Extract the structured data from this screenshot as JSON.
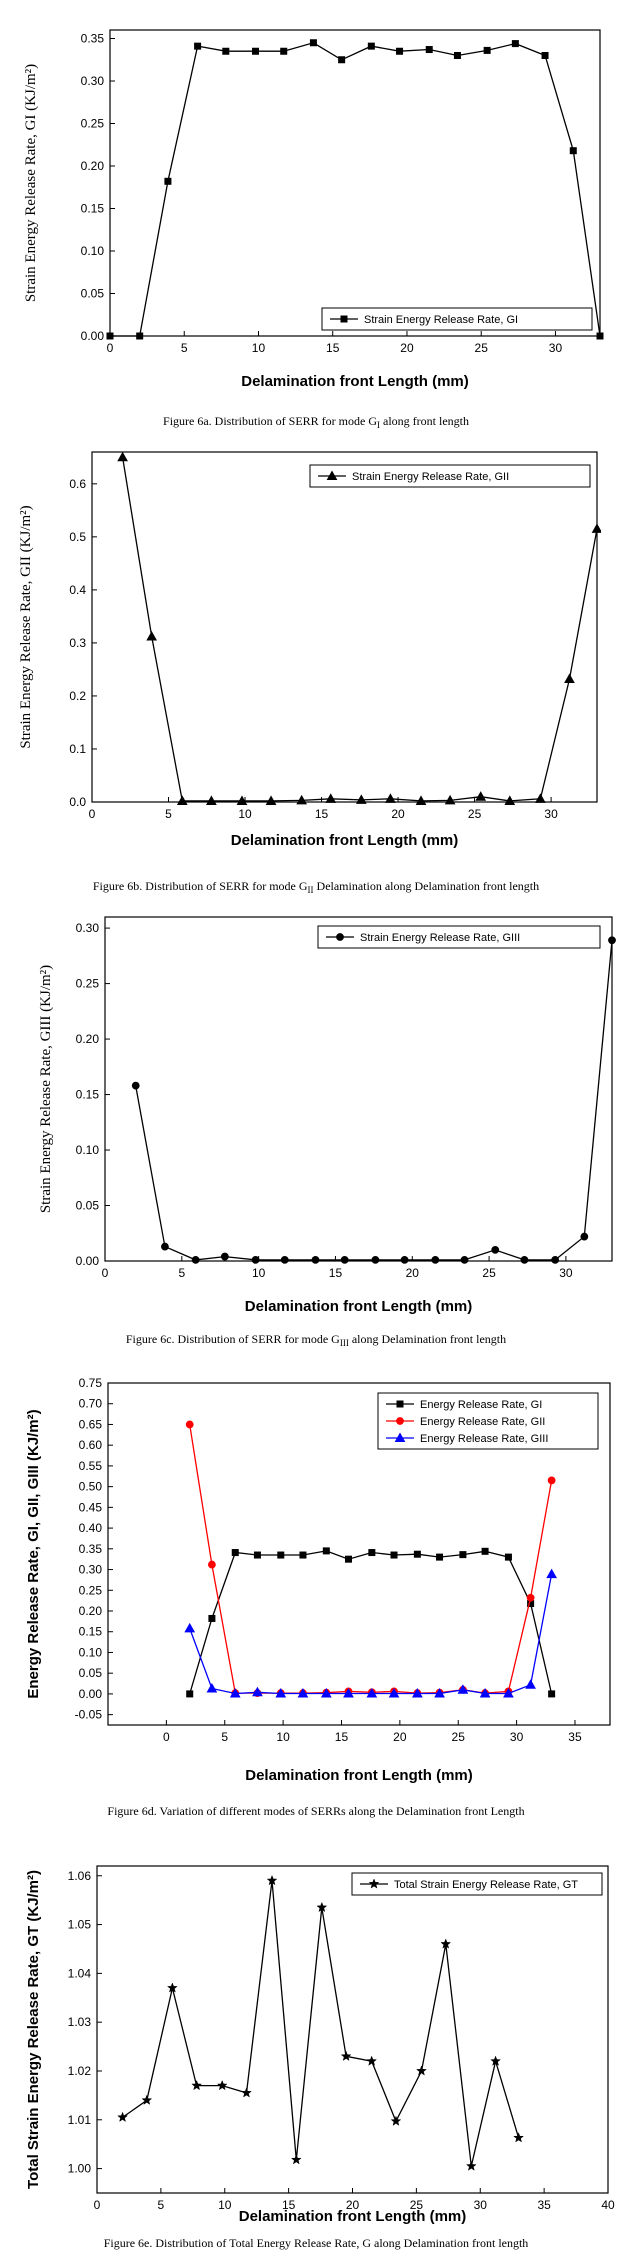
{
  "chart_data": [
    {
      "id": "fig6a",
      "type": "line",
      "caption": "Figure 6a.   Distribution of SERR for mode G",
      "caption_sub": "I",
      "caption_tail": " along front length",
      "xlabel": "Delamination front Length (mm)",
      "ylabel": "Strain Energy Release Rate, GI (KJ/m²)",
      "xlim": [
        0,
        33
      ],
      "ylim": [
        0,
        0.36
      ],
      "xticks": [
        0,
        5,
        10,
        15,
        20,
        25,
        30
      ],
      "yticks": [
        0,
        0.05,
        0.1,
        0.15,
        0.2,
        0.25,
        0.3,
        0.35
      ],
      "ytick_labels": [
        "0.00",
        "0.05",
        "0.10",
        "0.15",
        "0.20",
        "0.25",
        "0.30",
        "0.35"
      ],
      "legend_position": "bottom-right",
      "series": [
        {
          "name": "Strain Energy Release Rate, GI",
          "marker": "square",
          "color": "#000000",
          "x": [
            0,
            2,
            3.9,
            5.9,
            7.8,
            9.8,
            11.7,
            13.7,
            15.6,
            17.6,
            19.5,
            21.5,
            23.4,
            25.4,
            27.3,
            29.3,
            31.2,
            33
          ],
          "y": [
            0,
            0,
            0.182,
            0.341,
            0.335,
            0.335,
            0.335,
            0.345,
            0.325,
            0.341,
            0.335,
            0.337,
            0.33,
            0.336,
            0.344,
            0.33,
            0.218,
            0
          ]
        }
      ]
    },
    {
      "id": "fig6b",
      "type": "line",
      "caption": "Figure 6b.   Distribution of SERR for mode G",
      "caption_sub": "II",
      "caption_tail": " Delamination along Delamination front length",
      "xlabel": "Delamination front Length (mm)",
      "ylabel": "Strain Energy Release Rate, GII (KJ/m²)",
      "xlim": [
        0,
        33
      ],
      "ylim": [
        0,
        0.66
      ],
      "xticks": [
        0,
        5,
        10,
        15,
        20,
        25,
        30
      ],
      "yticks": [
        0,
        0.1,
        0.2,
        0.3,
        0.4,
        0.5,
        0.6
      ],
      "ytick_labels": [
        "0.0",
        "0.1",
        "0.2",
        "0.3",
        "0.4",
        "0.5",
        "0.6"
      ],
      "legend_position": "top-right",
      "series": [
        {
          "name": "Strain Energy Release Rate, GII",
          "marker": "triangle",
          "color": "#000000",
          "x": [
            2,
            3.9,
            5.9,
            7.8,
            9.8,
            11.7,
            13.7,
            15.6,
            17.6,
            19.5,
            21.5,
            23.4,
            25.4,
            27.3,
            29.3,
            31.2,
            33
          ],
          "y": [
            0.65,
            0.312,
            0.002,
            0.002,
            0.002,
            0.002,
            0.003,
            0.006,
            0.004,
            0.006,
            0.002,
            0.003,
            0.01,
            0.002,
            0.006,
            0.232,
            0.515
          ]
        }
      ]
    },
    {
      "id": "fig6c",
      "type": "line",
      "caption": "Figure 6c.   Distribution of SERR for mode G",
      "caption_sub": "III",
      "caption_tail": " along Delamination front length",
      "xlabel": "Delamination front Length (mm)",
      "ylabel": "Strain Energy Release Rate, GIII (KJ/m²)",
      "xlim": [
        0,
        33
      ],
      "ylim": [
        0,
        0.31
      ],
      "xticks": [
        0,
        5,
        10,
        15,
        20,
        25,
        30
      ],
      "yticks": [
        0,
        0.05,
        0.1,
        0.15,
        0.2,
        0.25,
        0.3
      ],
      "ytick_labels": [
        "0.00",
        "0.05",
        "0.10",
        "0.15",
        "0.20",
        "0.25",
        "0.30"
      ],
      "legend_position": "top-right",
      "series": [
        {
          "name": "Strain Energy Release Rate, GIII",
          "marker": "circle",
          "color": "#000000",
          "x": [
            2,
            3.9,
            5.9,
            7.8,
            9.8,
            11.7,
            13.7,
            15.6,
            17.6,
            19.5,
            21.5,
            23.4,
            25.4,
            27.3,
            29.3,
            31.2,
            33
          ],
          "y": [
            0.158,
            0.013,
            0.001,
            0.004,
            0.001,
            0.001,
            0.001,
            0.001,
            0.001,
            0.001,
            0.001,
            0.001,
            0.01,
            0.001,
            0.001,
            0.022,
            0.289
          ]
        }
      ]
    },
    {
      "id": "fig6d",
      "type": "line",
      "caption": "Figure 6d.   Variation of different modes of SERRs along the Delamination front Length",
      "caption_sub": "",
      "caption_tail": "",
      "xlabel": "Delamination front Length (mm)",
      "ylabel": "Energy Release Rate, GI, GII, GIII (KJ/m²)",
      "xlim": [
        -5,
        38
      ],
      "ylim": [
        -0.075,
        0.75
      ],
      "xticks": [
        0,
        5,
        10,
        15,
        20,
        25,
        30,
        35
      ],
      "yticks": [
        -0.05,
        0,
        0.05,
        0.1,
        0.15,
        0.2,
        0.25,
        0.3,
        0.35,
        0.4,
        0.45,
        0.5,
        0.55,
        0.6,
        0.65,
        0.7,
        0.75
      ],
      "ytick_labels": [
        "-0.05",
        "0.00",
        "0.05",
        "0.10",
        "0.15",
        "0.20",
        "0.25",
        "0.30",
        "0.35",
        "0.40",
        "0.45",
        "0.50",
        "0.55",
        "0.60",
        "0.65",
        "0.70",
        "0.75"
      ],
      "legend_position": "top-right",
      "series": [
        {
          "name": "Energy Release Rate, GI",
          "marker": "square",
          "color": "#000000",
          "x": [
            2,
            3.9,
            5.9,
            7.8,
            9.8,
            11.7,
            13.7,
            15.6,
            17.6,
            19.5,
            21.5,
            23.4,
            25.4,
            27.3,
            29.3,
            31.2,
            33
          ],
          "y": [
            0,
            0.182,
            0.341,
            0.335,
            0.335,
            0.335,
            0.345,
            0.325,
            0.341,
            0.335,
            0.337,
            0.33,
            0.336,
            0.344,
            0.33,
            0.218,
            0
          ]
        },
        {
          "name": "Energy Release Rate, GII",
          "marker": "circle",
          "color": "#ff0000",
          "x": [
            2,
            3.9,
            5.9,
            7.8,
            9.8,
            11.7,
            13.7,
            15.6,
            17.6,
            19.5,
            21.5,
            23.4,
            25.4,
            27.3,
            29.3,
            31.2,
            33
          ],
          "y": [
            0.65,
            0.312,
            0.002,
            0.002,
            0.002,
            0.002,
            0.003,
            0.006,
            0.004,
            0.006,
            0.002,
            0.003,
            0.01,
            0.002,
            0.006,
            0.232,
            0.515
          ]
        },
        {
          "name": "Energy Release Rate, GIII",
          "marker": "triangle",
          "color": "#0000ff",
          "x": [
            2,
            3.9,
            5.9,
            7.8,
            9.8,
            11.7,
            13.7,
            15.6,
            17.6,
            19.5,
            21.5,
            23.4,
            25.4,
            27.3,
            29.3,
            31.2,
            33
          ],
          "y": [
            0.158,
            0.013,
            0.001,
            0.004,
            0.001,
            0.001,
            0.001,
            0.001,
            0.001,
            0.001,
            0.001,
            0.001,
            0.01,
            0.001,
            0.001,
            0.022,
            0.289
          ]
        }
      ]
    },
    {
      "id": "fig6e",
      "type": "line",
      "caption": "Figure 6e.   Distribution of Total Energy Release Rate, G along Delamination front length",
      "caption_sub": "",
      "caption_tail": "",
      "xlabel": "Delamination front Length (mm)",
      "ylabel": "Total Strain Energy Release Rate, GT (KJ/m²)",
      "xlim": [
        0,
        40
      ],
      "ylim": [
        0.995,
        1.062
      ],
      "xticks": [
        0,
        5,
        10,
        15,
        20,
        25,
        30,
        35,
        40
      ],
      "yticks": [
        1.0,
        1.01,
        1.02,
        1.03,
        1.04,
        1.05,
        1.06
      ],
      "ytick_labels": [
        "1.00",
        "1.01",
        "1.02",
        "1.03",
        "1.04",
        "1.05",
        "1.06"
      ],
      "legend_position": "top-right",
      "series": [
        {
          "name": "Total Strain Energy Release Rate, GT",
          "marker": "star",
          "color": "#000000",
          "x": [
            2,
            3.9,
            5.9,
            7.8,
            9.8,
            11.7,
            13.7,
            15.6,
            17.6,
            19.5,
            21.5,
            23.4,
            25.4,
            27.3,
            29.3,
            31.2,
            33
          ],
          "y": [
            1.0105,
            1.014,
            1.037,
            1.017,
            1.017,
            1.0155,
            1.059,
            1.0018,
            1.0535,
            1.023,
            1.022,
            1.0097,
            1.02,
            1.046,
            1.0005,
            1.022,
            1.0063
          ]
        }
      ]
    }
  ]
}
